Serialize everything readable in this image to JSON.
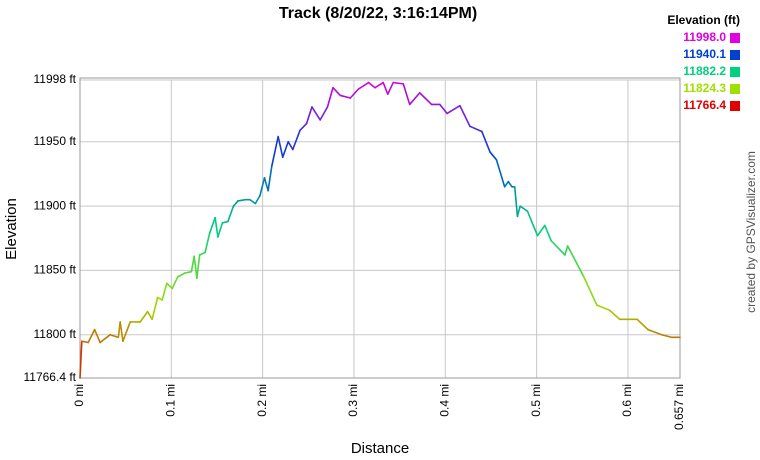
{
  "chart_data": {
    "type": "line",
    "title": "Track (8/20/22, 3:16:14PM)",
    "y_label": "Elevation",
    "x_label": "Distance",
    "credit": "created by GPSVisualizer.com",
    "xlim": [
      0,
      0.657
    ],
    "ylim": [
      11766.4,
      11998
    ],
    "xticks": [
      {
        "value": 0,
        "label": "0 mi"
      },
      {
        "value": 0.1,
        "label": "0.1 mi"
      },
      {
        "value": 0.2,
        "label": "0.2 mi"
      },
      {
        "value": 0.3,
        "label": "0.3 mi"
      },
      {
        "value": 0.4,
        "label": "0.4 mi"
      },
      {
        "value": 0.5,
        "label": "0.5 mi"
      },
      {
        "value": 0.6,
        "label": "0.6 mi"
      },
      {
        "value": 0.657,
        "label": "0.657 mi"
      }
    ],
    "yticks": [
      {
        "value": 11766.4,
        "label": "11766.4 ft"
      },
      {
        "value": 11800,
        "label": "11800 ft"
      },
      {
        "value": 11850,
        "label": "11850 ft"
      },
      {
        "value": 11900,
        "label": "11900 ft"
      },
      {
        "value": 11950,
        "label": "11950 ft"
      },
      {
        "value": 11998,
        "label": "11998 ft"
      }
    ],
    "grid": true,
    "legend": {
      "title": "Elevation (ft)",
      "entries": [
        {
          "label": "11998.0",
          "value": 11998.0,
          "color": "#e000e0"
        },
        {
          "label": "11940.1",
          "value": 11940.1,
          "color": "#0040d0"
        },
        {
          "label": "11882.2",
          "value": 11882.2,
          "color": "#00d080"
        },
        {
          "label": "11824.3",
          "value": 11824.3,
          "color": "#a0e000"
        },
        {
          "label": "11766.4",
          "value": 11766.4,
          "color": "#e00000"
        }
      ]
    },
    "x": [
      0,
      0.002,
      0.009,
      0.016,
      0.022,
      0.033,
      0.042,
      0.044,
      0.047,
      0.055,
      0.066,
      0.074,
      0.079,
      0.085,
      0.09,
      0.095,
      0.101,
      0.107,
      0.115,
      0.122,
      0.125,
      0.128,
      0.131,
      0.137,
      0.142,
      0.148,
      0.151,
      0.156,
      0.162,
      0.168,
      0.173,
      0.181,
      0.186,
      0.192,
      0.197,
      0.202,
      0.206,
      0.21,
      0.217,
      0.222,
      0.228,
      0.233,
      0.241,
      0.248,
      0.254,
      0.263,
      0.271,
      0.277,
      0.285,
      0.296,
      0.305,
      0.316,
      0.323,
      0.332,
      0.337,
      0.343,
      0.354,
      0.361,
      0.372,
      0.385,
      0.394,
      0.402,
      0.416,
      0.427,
      0.44,
      0.449,
      0.456,
      0.465,
      0.469,
      0.473,
      0.476,
      0.479,
      0.482,
      0.49,
      0.501,
      0.509,
      0.516,
      0.531,
      0.534,
      0.551,
      0.566,
      0.58,
      0.591,
      0.597,
      0.61,
      0.622,
      0.637,
      0.648,
      0.657
    ],
    "values": [
      11766.4,
      11795,
      11794,
      11804,
      11794,
      11800,
      11798,
      11810,
      11795,
      11810,
      11810,
      11818,
      11812,
      11829,
      11827,
      11840,
      11836,
      11845,
      11848,
      11849,
      11861,
      11844,
      11862,
      11864,
      11879,
      11891,
      11876,
      11887,
      11888,
      11900,
      11904,
      11905,
      11905,
      11902,
      11908,
      11922,
      11912,
      11931,
      11954,
      11938,
      11950,
      11944,
      11959,
      11964,
      11977,
      11967,
      11977,
      11992,
      11986,
      11984,
      11991,
      11996,
      11992,
      11996,
      11987,
      11996,
      11995,
      11979,
      11988,
      11979,
      11979,
      11972,
      11978,
      11962,
      11958,
      11942,
      11936,
      11915,
      11919,
      11915,
      11915,
      11892,
      11900,
      11896,
      11877,
      11885,
      11873,
      11862,
      11869,
      11846,
      11823,
      11819,
      11812,
      11812,
      11812,
      11804,
      11800,
      11798,
      11798
    ]
  }
}
